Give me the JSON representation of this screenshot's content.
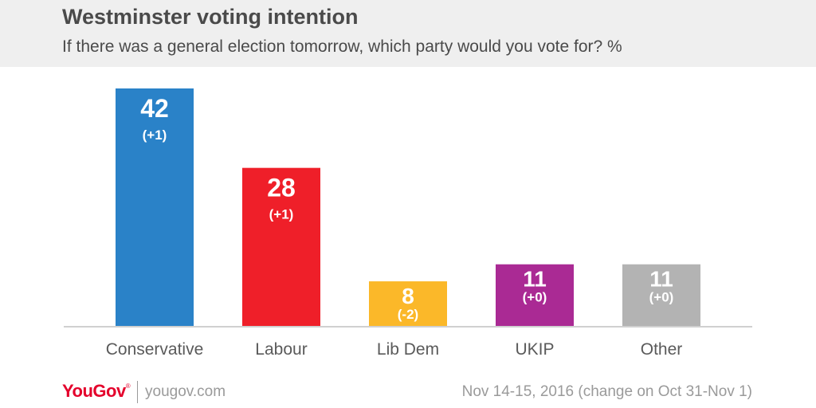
{
  "header": {
    "title": "Westminster voting intention",
    "subtitle": "If there was a general election tomorrow, which party would you vote for? %"
  },
  "chart_data": {
    "type": "bar",
    "categories": [
      "Conservative",
      "Labour",
      "Lib Dem",
      "UKIP",
      "Other"
    ],
    "values": [
      42,
      28,
      8,
      11,
      11
    ],
    "changes": [
      "(+1)",
      "(+1)",
      "(-2)",
      "(+0)",
      "(+0)"
    ],
    "colors": [
      "#2a82c8",
      "#ef1f29",
      "#fbb829",
      "#aa2a94",
      "#b3b3b3"
    ],
    "title": "Westminster voting intention",
    "subtitle": "If there was a general election tomorrow, which party would you vote for? %",
    "xlabel": "",
    "ylabel": "",
    "ylim": [
      0,
      42
    ],
    "grid": false,
    "legend": "none"
  },
  "footer": {
    "brand": "YouGov",
    "brand_mark": "®",
    "site": "yougov.com",
    "date_note": "Nov 14-15, 2016 (change on Oct 31-Nov 1)"
  }
}
